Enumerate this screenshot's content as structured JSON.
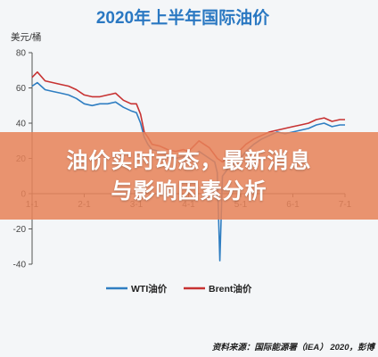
{
  "overlay": {
    "line1": "油价实时动态，最新消息",
    "line2": "与影响因素分析"
  },
  "chart_data": {
    "type": "line",
    "title": "2020年上半年国际油价",
    "ylabel": "美元/桶",
    "ylim": [
      -40,
      80
    ],
    "yticks": [
      -40,
      -20,
      0,
      20,
      40,
      60,
      80
    ],
    "xlim": [
      0,
      6
    ],
    "xticks": [
      {
        "label": "1-1",
        "x": 0
      },
      {
        "label": "2-1",
        "x": 1
      },
      {
        "label": "3-1",
        "x": 2
      },
      {
        "label": "4-1",
        "x": 3
      },
      {
        "label": "5-1",
        "x": 4
      },
      {
        "label": "6-1",
        "x": 5
      },
      {
        "label": "7-1",
        "x": 6
      }
    ],
    "grid": false,
    "legend": "bottom",
    "series": [
      {
        "name": "WTI油价",
        "color": "#2f7ec2",
        "points": [
          [
            0.0,
            61
          ],
          [
            0.1,
            63
          ],
          [
            0.25,
            59
          ],
          [
            0.4,
            58
          ],
          [
            0.55,
            57
          ],
          [
            0.7,
            56
          ],
          [
            0.85,
            54
          ],
          [
            1.0,
            51
          ],
          [
            1.15,
            50
          ],
          [
            1.3,
            51
          ],
          [
            1.45,
            51
          ],
          [
            1.6,
            52
          ],
          [
            1.75,
            49
          ],
          [
            1.9,
            47
          ],
          [
            2.0,
            46
          ],
          [
            2.08,
            40
          ],
          [
            2.15,
            32
          ],
          [
            2.22,
            28
          ],
          [
            2.3,
            25
          ],
          [
            2.45,
            24
          ],
          [
            2.6,
            22
          ],
          [
            2.75,
            20
          ],
          [
            2.9,
            21
          ],
          [
            3.0,
            20
          ],
          [
            3.1,
            22
          ],
          [
            3.2,
            24
          ],
          [
            3.3,
            22
          ],
          [
            3.4,
            20
          ],
          [
            3.5,
            18
          ],
          [
            3.55,
            12
          ],
          [
            3.6,
            -38
          ],
          [
            3.65,
            10
          ],
          [
            3.75,
            14
          ],
          [
            3.9,
            17
          ],
          [
            4.0,
            20
          ],
          [
            4.1,
            24
          ],
          [
            4.25,
            28
          ],
          [
            4.4,
            31
          ],
          [
            4.55,
            33
          ],
          [
            4.7,
            35
          ],
          [
            4.85,
            34
          ],
          [
            5.0,
            35
          ],
          [
            5.15,
            36
          ],
          [
            5.3,
            37
          ],
          [
            5.45,
            39
          ],
          [
            5.6,
            40
          ],
          [
            5.75,
            38
          ],
          [
            5.9,
            39
          ],
          [
            6.0,
            39
          ]
        ]
      },
      {
        "name": "Brent油价",
        "color": "#c73232",
        "points": [
          [
            0.0,
            66
          ],
          [
            0.1,
            69
          ],
          [
            0.25,
            64
          ],
          [
            0.4,
            63
          ],
          [
            0.55,
            62
          ],
          [
            0.7,
            61
          ],
          [
            0.85,
            59
          ],
          [
            1.0,
            56
          ],
          [
            1.15,
            55
          ],
          [
            1.3,
            55
          ],
          [
            1.45,
            56
          ],
          [
            1.6,
            57
          ],
          [
            1.75,
            53
          ],
          [
            1.9,
            51
          ],
          [
            2.0,
            51
          ],
          [
            2.08,
            45
          ],
          [
            2.15,
            35
          ],
          [
            2.22,
            32
          ],
          [
            2.3,
            28
          ],
          [
            2.45,
            27
          ],
          [
            2.6,
            25
          ],
          [
            2.75,
            24
          ],
          [
            2.9,
            25
          ],
          [
            3.0,
            24
          ],
          [
            3.1,
            27
          ],
          [
            3.2,
            30
          ],
          [
            3.3,
            28
          ],
          [
            3.4,
            26
          ],
          [
            3.5,
            22
          ],
          [
            3.55,
            20
          ],
          [
            3.6,
            19
          ],
          [
            3.65,
            18
          ],
          [
            3.75,
            20
          ],
          [
            3.9,
            22
          ],
          [
            4.0,
            25
          ],
          [
            4.1,
            28
          ],
          [
            4.25,
            31
          ],
          [
            4.4,
            33
          ],
          [
            4.55,
            35
          ],
          [
            4.7,
            36
          ],
          [
            4.85,
            37
          ],
          [
            5.0,
            38
          ],
          [
            5.15,
            39
          ],
          [
            5.3,
            40
          ],
          [
            5.45,
            42
          ],
          [
            5.6,
            43
          ],
          [
            5.75,
            41
          ],
          [
            5.9,
            42
          ],
          [
            6.0,
            42
          ]
        ]
      }
    ],
    "source": "资料来源：国际能源署（IEA） 2020，彭博"
  }
}
